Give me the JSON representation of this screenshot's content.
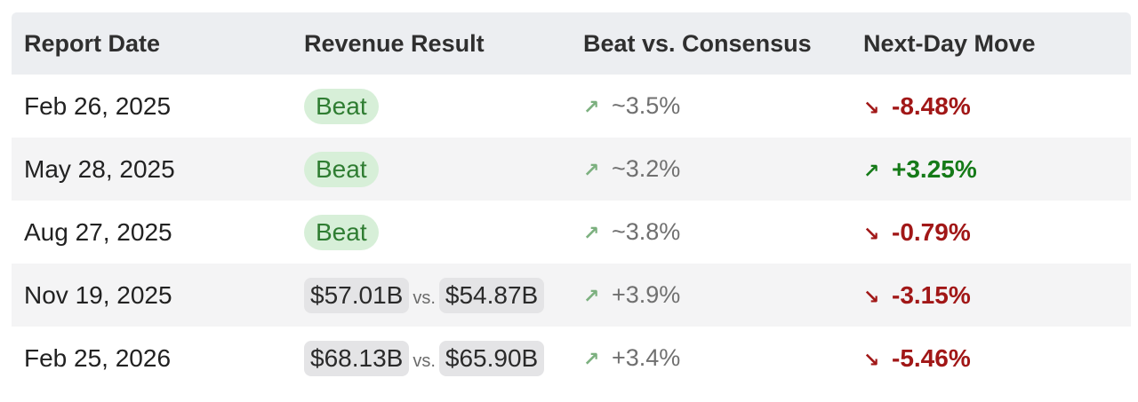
{
  "colors": {
    "header_bg": "#eceef1",
    "stripe_bg": "#f4f4f5",
    "beat_pill_bg": "#d7efd8",
    "beat_pill_text": "#2f7d32",
    "negative": "#a11717",
    "positive": "#157a18",
    "muted_up_arrow": "#7cb07f"
  },
  "table": {
    "headers": [
      "Report Date",
      "Revenue Result",
      "Beat vs. Consensus",
      "Next-Day Move"
    ],
    "rows": [
      {
        "date": "Feb 26, 2025",
        "revenue": {
          "type": "pill",
          "label": "Beat"
        },
        "beat_icon": "arrow-up-right-icon",
        "beat": "~3.5%",
        "move_icon": "arrow-down-right-icon",
        "move": "-8.48%",
        "move_direction": "negative"
      },
      {
        "date": "May 28, 2025",
        "revenue": {
          "type": "pill",
          "label": "Beat"
        },
        "beat_icon": "arrow-up-right-icon",
        "beat": "~3.2%",
        "move_icon": "arrow-up-right-icon",
        "move": "+3.25%",
        "move_direction": "positive"
      },
      {
        "date": "Aug 27, 2025",
        "revenue": {
          "type": "pill",
          "label": "Beat"
        },
        "beat_icon": "arrow-up-right-icon",
        "beat": "~3.8%",
        "move_icon": "arrow-down-right-icon",
        "move": "-0.79%",
        "move_direction": "negative"
      },
      {
        "date": "Nov 19, 2025",
        "revenue": {
          "type": "compare",
          "actual": "$57.01B",
          "sep": "vs.",
          "consensus": "$54.87B"
        },
        "beat_icon": "arrow-up-right-icon",
        "beat": "+3.9%",
        "move_icon": "arrow-down-right-icon",
        "move": "-3.15%",
        "move_direction": "negative"
      },
      {
        "date": "Feb 25, 2026",
        "revenue": {
          "type": "compare",
          "actual": "$68.13B",
          "sep": "vs.",
          "consensus": "$65.90B"
        },
        "beat_icon": "arrow-up-right-icon",
        "beat": "+3.4%",
        "move_icon": "arrow-down-right-icon",
        "move": "-5.46%",
        "move_direction": "negative"
      }
    ]
  }
}
